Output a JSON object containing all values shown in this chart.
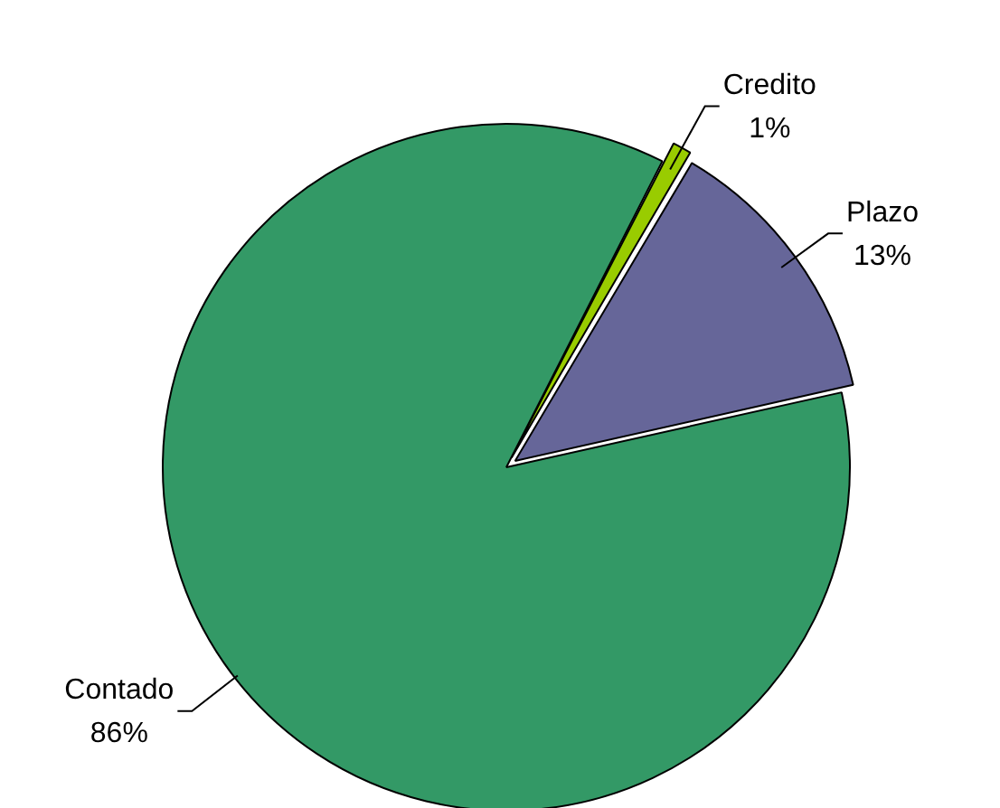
{
  "chart_data": {
    "type": "pie",
    "categories": [
      "Credito",
      "Plazo",
      "Contado"
    ],
    "values": [
      1,
      13,
      86
    ],
    "colors": [
      "#99cc00",
      "#666699",
      "#339966"
    ],
    "value_labels": [
      "1%",
      "13%",
      "86%"
    ],
    "legend": false
  }
}
